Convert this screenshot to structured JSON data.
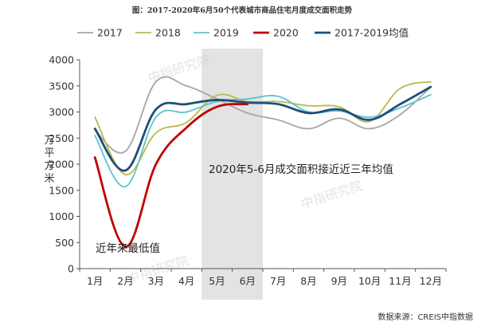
{
  "chart_data": {
    "type": "line",
    "title": "图：2017-2020年6月50个代表城市商品住宅月度成交面积走势",
    "ylabel": "万平方米",
    "xlabel": "",
    "ylim": [
      0,
      4000
    ],
    "yticks": [
      0,
      500,
      1000,
      1500,
      2000,
      2500,
      3000,
      3500,
      4000
    ],
    "categories": [
      "1月",
      "2月",
      "3月",
      "4月",
      "5月",
      "6月",
      "7月",
      "8月",
      "9月",
      "10月",
      "11月",
      "12月"
    ],
    "shaded_categories": [
      "5月",
      "6月"
    ],
    "series": [
      {
        "name": "2017",
        "color": "#a6a6a6",
        "width": 1.8,
        "values": [
          2650,
          2250,
          3580,
          3500,
          3250,
          2980,
          2850,
          2680,
          2880,
          2680,
          2950,
          3480
        ]
      },
      {
        "name": "2018",
        "color": "#b8ba4a",
        "width": 1.8,
        "values": [
          2900,
          1800,
          2600,
          2800,
          3320,
          3200,
          3200,
          3120,
          3100,
          2820,
          3450,
          3580
        ]
      },
      {
        "name": "2019",
        "color": "#5bc3cc",
        "width": 1.8,
        "values": [
          2550,
          1570,
          2900,
          3000,
          3200,
          3250,
          3300,
          3000,
          3020,
          2900,
          3080,
          3330
        ]
      },
      {
        "name": "2020",
        "color": "#c00000",
        "width": 2.8,
        "values": [
          2130,
          420,
          2000,
          2700,
          3100,
          3150,
          null,
          null,
          null,
          null,
          null,
          null
        ]
      },
      {
        "name": "2017-2019均值",
        "color": "#1f4e79",
        "width": 2.8,
        "values": [
          2680,
          1880,
          3050,
          3150,
          3230,
          3180,
          3150,
          2980,
          3050,
          2850,
          3150,
          3480
        ]
      }
    ],
    "annotations": [
      "2020年5-6月成交面积接近近三年均值",
      "近年来最低值"
    ],
    "watermark": "中指研究院",
    "source": "数据来源：CREIS中指数据",
    "grid": false,
    "legend_position": "top"
  }
}
